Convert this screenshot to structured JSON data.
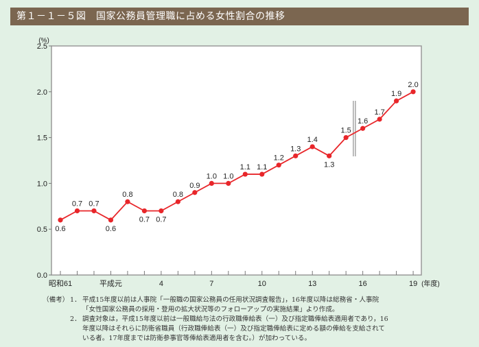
{
  "title": "第１－１－５図　国家公務員管理職に占める女性割合の推移",
  "chart_data": {
    "type": "line",
    "title": "国家公務員管理職に占める女性割合の推移",
    "ylabel": "(%)",
    "xlabel": "(年度)",
    "ylim": [
      0,
      2.5
    ],
    "yticks": [
      "0.0",
      "0.5",
      "1.0",
      "1.5",
      "2.0",
      "2.5"
    ],
    "x": [
      "昭和61",
      "62",
      "63",
      "平成元",
      "2",
      "3",
      "4",
      "5",
      "6",
      "7",
      "8",
      "9",
      "10",
      "11",
      "12",
      "13",
      "14",
      "15",
      "16",
      "17",
      "18",
      "19"
    ],
    "xtick_labels": [
      {
        "index": 0,
        "label": "昭和61"
      },
      {
        "index": 3,
        "label": "平成元"
      },
      {
        "index": 6,
        "label": "4"
      },
      {
        "index": 9,
        "label": "7"
      },
      {
        "index": 12,
        "label": "10"
      },
      {
        "index": 15,
        "label": "13"
      },
      {
        "index": 18,
        "label": "16"
      },
      {
        "index": 21,
        "label": "19"
      }
    ],
    "series": [
      {
        "name": "女性割合",
        "color": "#e8262a",
        "values": [
          0.6,
          0.7,
          0.7,
          0.6,
          0.8,
          0.7,
          0.7,
          0.8,
          0.9,
          1.0,
          1.0,
          1.1,
          1.1,
          1.2,
          1.3,
          1.4,
          1.3,
          1.5,
          1.6,
          1.7,
          1.9,
          2.0
        ],
        "labels": [
          "0.6",
          "0.7",
          "0.7",
          "0.6",
          "0.8",
          "0.7",
          "0.7",
          "0.8",
          "0.9",
          "1.0",
          "1.0",
          "1.1",
          "1.1",
          "1.2",
          "1.3",
          "1.4",
          "1.3",
          "1.5",
          "1.6",
          "1.7",
          "1.9",
          "2.0"
        ]
      }
    ],
    "label_below_indices": [
      0,
      3,
      5,
      6,
      16
    ],
    "break_between": [
      17,
      18
    ],
    "grid": false
  },
  "notes": {
    "head": "（備考）",
    "items": [
      {
        "num": "1．",
        "text": "平成15年度以前は人事院「一般職の国家公務員の任用状況調査報告」，16年度以降は総務省・人事院「女性国家公務員の採用・登用の拡大状況等のフォローアップの実施結果」より作成。"
      },
      {
        "num": "2．",
        "text": "調査対象は，平成15年度以前は一般職給与法の行政職俸給表（一）及び指定職俸給表適用者であり，16年度以降はそれらに防衛省職員（行政職俸給表（一）及び指定職俸給表に定める額の俸給を支給されている者。17年度までは防衛参事官等俸給表適用者を含む。）が加わっている。"
      }
    ]
  }
}
